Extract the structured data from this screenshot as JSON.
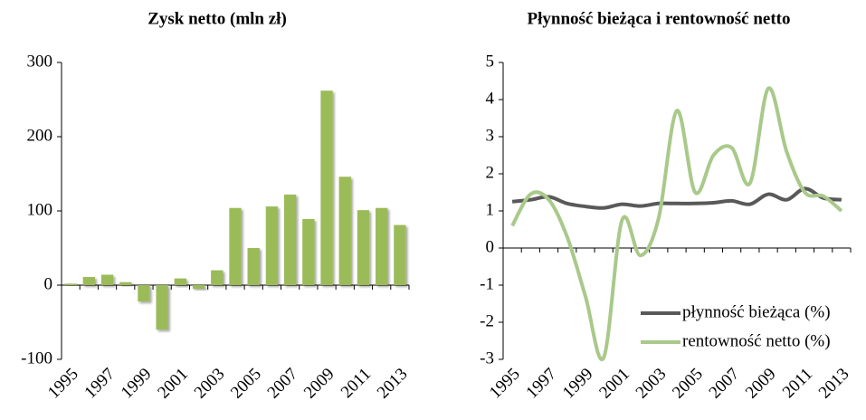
{
  "chart_data": [
    {
      "type": "bar",
      "title": "Zysk netto (mln zł)",
      "categories": [
        "1995",
        null,
        "1997",
        null,
        "1999",
        null,
        "2001",
        null,
        "2003",
        null,
        "2005",
        null,
        "2007",
        null,
        "2009",
        null,
        "2011",
        null,
        "2013"
      ],
      "values": [
        2,
        11,
        14,
        4,
        -22,
        -60,
        9,
        -5,
        20,
        104,
        50,
        106,
        122,
        89,
        262,
        146,
        101,
        104,
        81
      ],
      "color": "#9bbb59",
      "ylim": [
        -100,
        300
      ],
      "yticks": [
        -100,
        0,
        100,
        200,
        300
      ]
    },
    {
      "type": "line",
      "title": "Płynność bieżąca i rentowność netto",
      "categories": [
        "1995",
        null,
        "1997",
        null,
        "1999",
        null,
        "2001",
        null,
        "2003",
        null,
        "2005",
        null,
        "2007",
        null,
        "2009",
        null,
        "2011",
        null,
        "2013"
      ],
      "series": [
        {
          "name": "płynność bieżąca (%)",
          "color": "#595959",
          "values": [
            1.25,
            1.3,
            1.38,
            1.2,
            1.12,
            1.08,
            1.18,
            1.13,
            1.2,
            1.2,
            1.2,
            1.22,
            1.27,
            1.18,
            1.45,
            1.3,
            1.6,
            1.35,
            1.3
          ]
        },
        {
          "name": "rentowność netto (%)",
          "color": "#a9c98a",
          "values": [
            0.6,
            1.45,
            1.3,
            0.3,
            -1.3,
            -2.95,
            0.75,
            -0.2,
            0.8,
            3.7,
            1.5,
            2.5,
            2.7,
            1.75,
            4.3,
            2.6,
            1.5,
            1.4,
            1.0
          ]
        }
      ],
      "ylim": [
        -3,
        5
      ],
      "yticks": [
        -3,
        -2,
        -1,
        0,
        1,
        2,
        3,
        4,
        5
      ],
      "legend": "lower right"
    }
  ]
}
